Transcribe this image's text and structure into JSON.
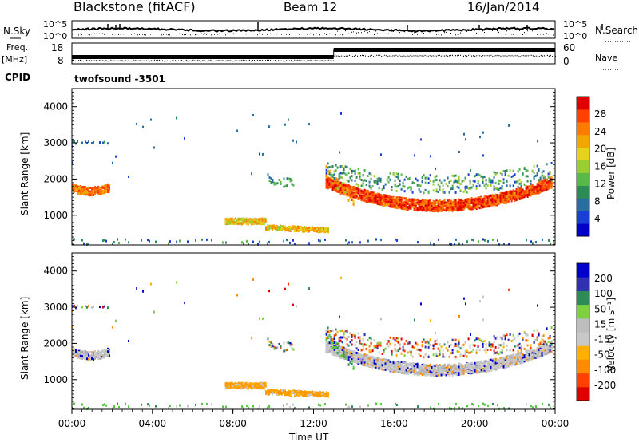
{
  "header": {
    "station": "Blackstone (fitACF)",
    "beam": "Beam 12",
    "date": "16/Jan/2014"
  },
  "side_labels": {
    "nsky": "N.Sky",
    "freq": "Freq.",
    "freq_unit": "[MHz]",
    "cpid": "CPID",
    "nsearch": "N.Search",
    "nave": "Nave"
  },
  "cpid_value": "twofsound -3501",
  "colors": {
    "power": [
      "#0000cc",
      "#1a3fd9",
      "#2a6ea0",
      "#2e8b57",
      "#59b84a",
      "#9acd32",
      "#e6d21a",
      "#f0a800",
      "#ff7a00",
      "#ff4000",
      "#e00000"
    ],
    "velocity": [
      "#e00000",
      "#ff4000",
      "#ff8c00",
      "#ffb000",
      "#c8c8c8",
      "#bdbdbd",
      "#7ed040",
      "#2e8b57",
      "#3030b0",
      "#0000cc"
    ]
  },
  "chart_data": [
    {
      "type": "line",
      "name": "noise-sky-search",
      "left_axis_ticks": [
        "10^5",
        "10^0"
      ],
      "right_axis_ticks": [
        "10^5",
        "10^0"
      ]
    },
    {
      "type": "line",
      "name": "frequency-nave",
      "left_axis_ticks": [
        "18",
        "8"
      ],
      "right_axis_ticks": [
        "60",
        "0"
      ],
      "series": [
        {
          "role": "frequency",
          "x": [
            0.0,
            13.0,
            13.0,
            24.0
          ],
          "y": [
            10.5,
            10.5,
            15.5,
            15.5
          ]
        },
        {
          "role": "nave",
          "x": [
            0.0,
            13.0,
            13.0,
            24.0
          ],
          "y": [
            5,
            5,
            20,
            20
          ]
        }
      ]
    },
    {
      "type": "heatmap",
      "name": "power",
      "ylabel": "Slant Range [km]",
      "y_ticks": [
        "1000",
        "2000",
        "3000",
        "4000"
      ],
      "ylim": [
        180,
        4500
      ],
      "xlim": [
        0,
        24
      ],
      "colorbar_label": "Power [dB]",
      "colorbar_ticks": [
        "4",
        "8",
        "12",
        "16",
        "20",
        "24",
        "28"
      ],
      "vrange": [
        0,
        31
      ]
    },
    {
      "type": "heatmap",
      "name": "velocity",
      "ylabel": "Slant Range [km]",
      "xlabel": "Time UT",
      "x_ticks": [
        "00:00",
        "04:00",
        "08:00",
        "12:00",
        "16:00",
        "20:00",
        "00:00"
      ],
      "y_ticks": [
        "1000",
        "2000",
        "3000",
        "4000"
      ],
      "ylim": [
        180,
        4500
      ],
      "xlim": [
        0,
        24
      ],
      "colorbar_label": "Velocity [m s⁻¹]",
      "colorbar_ticks": [
        "-200",
        "-100",
        "-50",
        "-15",
        "15",
        "50",
        "100",
        "200"
      ]
    }
  ]
}
